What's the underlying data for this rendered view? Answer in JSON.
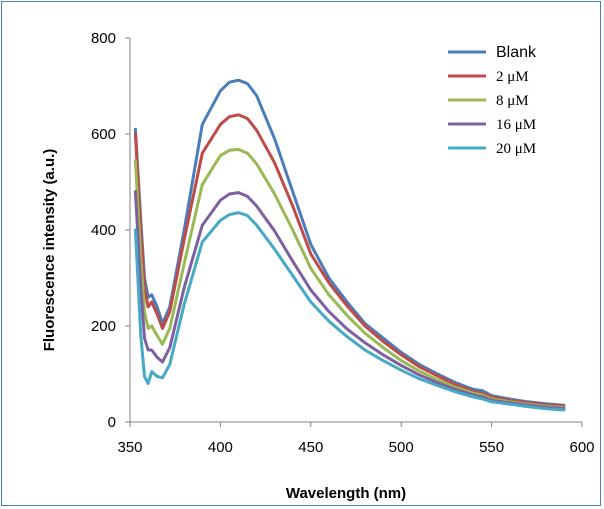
{
  "chart_data": {
    "type": "line",
    "title": "",
    "xlabel": "Wavelength (nm)",
    "ylabel": "Fluorescence intensity (a.u.)",
    "xlim": [
      350,
      600
    ],
    "ylim": [
      0,
      800
    ],
    "x_ticks": [
      350,
      400,
      450,
      500,
      550,
      600
    ],
    "y_ticks": [
      0,
      200,
      400,
      600,
      800
    ],
    "grid": false,
    "legend_position": "top-right",
    "x": [
      353,
      356,
      358,
      360,
      362,
      365,
      368,
      372,
      380,
      390,
      400,
      405,
      410,
      415,
      420,
      430,
      440,
      450,
      460,
      470,
      480,
      490,
      500,
      510,
      520,
      530,
      540,
      545,
      550,
      560,
      570,
      580,
      590
    ],
    "series": [
      {
        "name": "Blank",
        "color": "#4a7ebb",
        "values": [
          610,
          420,
          300,
          260,
          265,
          240,
          205,
          240,
          400,
          620,
          690,
          708,
          712,
          705,
          680,
          590,
          480,
          370,
          300,
          250,
          205,
          175,
          145,
          120,
          100,
          82,
          68,
          65,
          55,
          48,
          42,
          38,
          35
        ]
      },
      {
        "name": "2 μM",
        "color": "#be4b48",
        "values": [
          600,
          400,
          280,
          240,
          250,
          225,
          195,
          230,
          380,
          560,
          620,
          636,
          640,
          632,
          608,
          540,
          450,
          350,
          290,
          242,
          200,
          168,
          140,
          115,
          96,
          78,
          64,
          60,
          52,
          45,
          40,
          36,
          33
        ]
      },
      {
        "name": "8 μM",
        "color": "#98b954",
        "values": [
          545,
          340,
          230,
          195,
          200,
          180,
          162,
          195,
          330,
          495,
          555,
          566,
          568,
          560,
          538,
          475,
          400,
          320,
          265,
          222,
          185,
          155,
          128,
          106,
          88,
          72,
          60,
          56,
          48,
          42,
          37,
          33,
          30
        ]
      },
      {
        "name": "16 μM",
        "color": "#7d60a0",
        "values": [
          480,
          280,
          175,
          150,
          150,
          135,
          125,
          155,
          280,
          410,
          462,
          475,
          478,
          470,
          450,
          398,
          335,
          275,
          230,
          194,
          165,
          140,
          118,
          98,
          82,
          68,
          56,
          52,
          45,
          40,
          35,
          31,
          28
        ]
      },
      {
        "name": "20 μM",
        "color": "#46aac5",
        "values": [
          400,
          180,
          95,
          80,
          105,
          95,
          92,
          120,
          245,
          375,
          420,
          432,
          436,
          430,
          410,
          360,
          305,
          250,
          210,
          178,
          150,
          128,
          108,
          90,
          76,
          63,
          52,
          48,
          42,
          37,
          32,
          28,
          25
        ]
      }
    ]
  }
}
